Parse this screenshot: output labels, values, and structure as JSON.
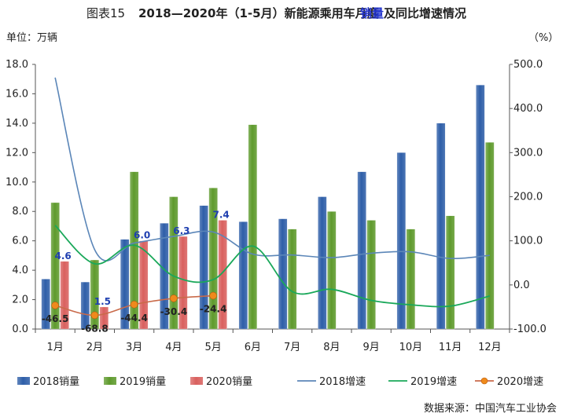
{
  "colors": {
    "bar2018": "#2e5ea8",
    "bar2019": "#5e9a2c",
    "bar2020": "#d9605e",
    "line2018": "#5b86b8",
    "line2019": "#1aa85a",
    "line2020": "#c96a4a",
    "marker2020": "#ef8a1c",
    "label2020": "#1f3fb0",
    "label2020growth": "#222222",
    "title_accent": "#2233cc",
    "axis": "#555555"
  },
  "chart_data": {
    "type": "bar",
    "title_prefix": "图表15",
    "title_main": "2018—2020年（1-5月）新能源乘用车月度",
    "title_accent": "销量",
    "title_suffix": "及同比增速情况",
    "ylabel_left": "单位：万辆",
    "ylabel_right": "（%）",
    "categories": [
      "1月",
      "2月",
      "3月",
      "4月",
      "5月",
      "6月",
      "7月",
      "8月",
      "9月",
      "10月",
      "11月",
      "12月"
    ],
    "ylim_left": [
      0,
      18
    ],
    "ylim_right": [
      -100,
      500
    ],
    "yticks_left": [
      "0.0",
      "2.0",
      "4.0",
      "6.0",
      "8.0",
      "10.0",
      "12.0",
      "14.0",
      "16.0",
      "18.0"
    ],
    "yticks_right": [
      "-100.0",
      "0.0",
      "100.0",
      "200.0",
      "300.0",
      "400.0",
      "500.0"
    ],
    "bar_series": [
      {
        "name": "2018销量",
        "values": [
          3.4,
          3.2,
          6.1,
          7.2,
          8.4,
          7.3,
          7.5,
          9.0,
          10.7,
          12.0,
          14.0,
          16.6
        ]
      },
      {
        "name": "2019销量",
        "values": [
          8.6,
          4.7,
          10.7,
          9.0,
          9.6,
          13.9,
          6.8,
          8.0,
          7.4,
          6.8,
          7.7,
          12.7
        ]
      },
      {
        "name": "2020销量",
        "values": [
          4.6,
          1.5,
          6.0,
          6.3,
          7.4
        ],
        "labels": [
          "4.6",
          "1.5",
          "6.0",
          "6.3",
          "7.4"
        ]
      }
    ],
    "line_series": [
      {
        "name": "2018增速",
        "values": [
          470,
          80,
          95,
          110,
          120,
          70,
          68,
          62,
          72,
          75,
          60,
          67
        ]
      },
      {
        "name": "2019增速",
        "values": [
          135,
          48,
          90,
          20,
          12,
          88,
          -15,
          -10,
          -35,
          -45,
          -48,
          -25
        ]
      },
      {
        "name": "2020增速",
        "values": [
          -46.5,
          -68.8,
          -44.4,
          -30.4,
          -24.4
        ],
        "labels": [
          "-46.5",
          "-68.8",
          "-44.4",
          "-30.4",
          "-24.4"
        ]
      }
    ],
    "legend": [
      "2018销量",
      "2019销量",
      "2020销量",
      "2018增速",
      "2019增速",
      "2020增速"
    ],
    "legend_position": "bottom",
    "grid": false,
    "source": "数据来源：中国汽车工业协会"
  }
}
